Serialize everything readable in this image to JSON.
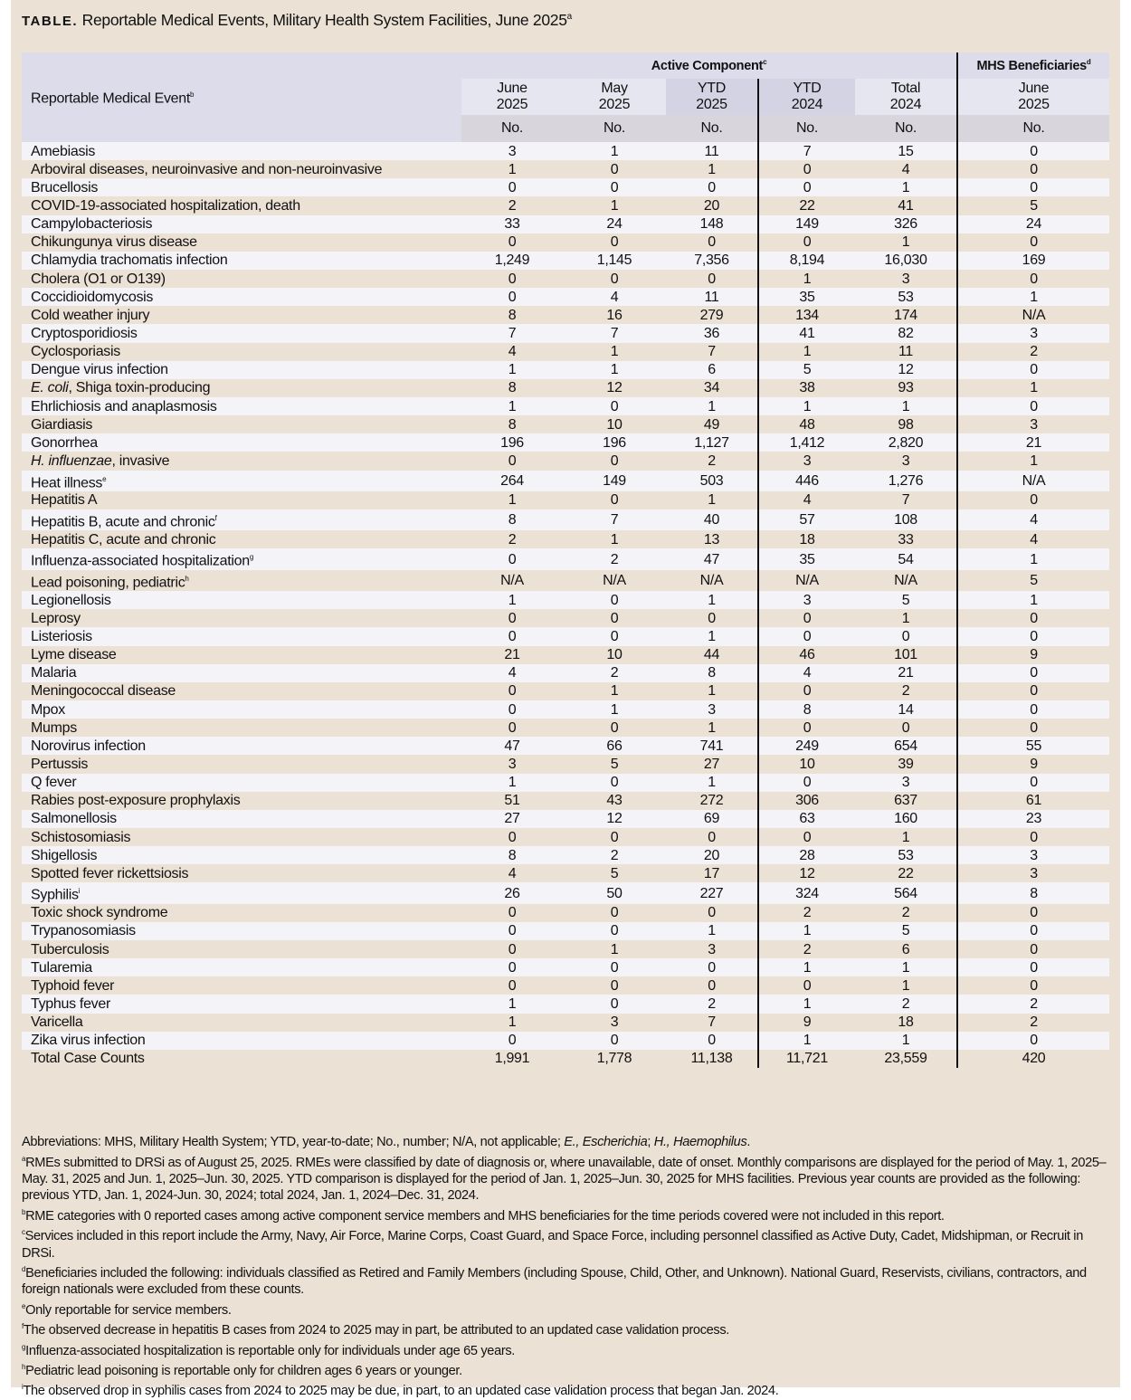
{
  "title": {
    "label": "TABLE.",
    "text": "Reportable Medical Events, Military Health System Facilities, June 2025",
    "sup": "a"
  },
  "header": {
    "row_header": "Reportable Medical Event",
    "row_header_sup": "b",
    "group_active": "Active Component",
    "group_active_sup": "c",
    "group_mhs": "MHS Beneficiaries",
    "group_mhs_sup": "d",
    "columns": [
      {
        "l1": "June",
        "l2": "2025"
      },
      {
        "l1": "May",
        "l2": "2025"
      },
      {
        "l1": "YTD",
        "l2": "2025"
      },
      {
        "l1": "YTD",
        "l2": "2024"
      },
      {
        "l1": "Total",
        "l2": "2024"
      },
      {
        "l1": "June",
        "l2": "2025"
      }
    ],
    "unit": "No."
  },
  "rows": [
    {
      "name": "Amebiasis",
      "v": [
        "3",
        "1",
        "11",
        "7",
        "15",
        "0"
      ]
    },
    {
      "name": "Arboviral diseases, neuroinvasive and non-neuroinvasive",
      "v": [
        "1",
        "0",
        "1",
        "0",
        "4",
        "0"
      ]
    },
    {
      "name": "Brucellosis",
      "v": [
        "0",
        "0",
        "0",
        "0",
        "1",
        "0"
      ]
    },
    {
      "name": "COVID-19-associated hospitalization, death",
      "v": [
        "2",
        "1",
        "20",
        "22",
        "41",
        "5"
      ]
    },
    {
      "name": "Campylobacteriosis",
      "v": [
        "33",
        "24",
        "148",
        "149",
        "326",
        "24"
      ]
    },
    {
      "name": "Chikungunya virus disease",
      "v": [
        "0",
        "0",
        "0",
        "0",
        "1",
        "0"
      ]
    },
    {
      "name": "Chlamydia trachomatis infection",
      "v": [
        "1,249",
        "1,145",
        "7,356",
        "8,194",
        "16,030",
        "169"
      ]
    },
    {
      "name": "Cholera (O1 or O139)",
      "v": [
        "0",
        "0",
        "0",
        "1",
        "3",
        "0"
      ]
    },
    {
      "name": "Coccidioidomycosis",
      "v": [
        "0",
        "4",
        "11",
        "35",
        "53",
        "1"
      ]
    },
    {
      "name": "Cold weather injury",
      "v": [
        "8",
        "16",
        "279",
        "134",
        "174",
        "N/A"
      ]
    },
    {
      "name": "Cryptosporidiosis",
      "v": [
        "7",
        "7",
        "36",
        "41",
        "82",
        "3"
      ]
    },
    {
      "name": "Cyclosporiasis",
      "v": [
        "4",
        "1",
        "7",
        "1",
        "11",
        "2"
      ]
    },
    {
      "name": "Dengue virus infection",
      "v": [
        "1",
        "1",
        "6",
        "5",
        "12",
        "0"
      ]
    },
    {
      "italic": "E. coli",
      "name": ", Shiga toxin-producing",
      "v": [
        "8",
        "12",
        "34",
        "38",
        "93",
        "1"
      ]
    },
    {
      "name": "Ehrlichiosis and anaplasmosis",
      "v": [
        "1",
        "0",
        "1",
        "1",
        "1",
        "0"
      ]
    },
    {
      "name": "Giardiasis",
      "v": [
        "8",
        "10",
        "49",
        "48",
        "98",
        "3"
      ]
    },
    {
      "name": "Gonorrhea",
      "v": [
        "196",
        "196",
        "1,127",
        "1,412",
        "2,820",
        "21"
      ]
    },
    {
      "italic": "H. influenzae",
      "name": ", invasive",
      "v": [
        "0",
        "0",
        "2",
        "3",
        "3",
        "1"
      ]
    },
    {
      "name": "Heat illness",
      "sup": "e",
      "v": [
        "264",
        "149",
        "503",
        "446",
        "1,276",
        "N/A"
      ]
    },
    {
      "name": "Hepatitis A",
      "v": [
        "1",
        "0",
        "1",
        "4",
        "7",
        "0"
      ]
    },
    {
      "name": "Hepatitis B, acute and chronic",
      "sup": "f",
      "v": [
        "8",
        "7",
        "40",
        "57",
        "108",
        "4"
      ]
    },
    {
      "name": "Hepatitis C, acute and chronic",
      "v": [
        "2",
        "1",
        "13",
        "18",
        "33",
        "4"
      ]
    },
    {
      "name": "Influenza-associated hospitalization",
      "sup": "g",
      "v": [
        "0",
        "2",
        "47",
        "35",
        "54",
        "1"
      ]
    },
    {
      "name": "Lead poisoning, pediatric",
      "sup": "h",
      "v": [
        "N/A",
        "N/A",
        "N/A",
        "N/A",
        "N/A",
        "5"
      ]
    },
    {
      "name": "Legionellosis",
      "v": [
        "1",
        "0",
        "1",
        "3",
        "5",
        "1"
      ]
    },
    {
      "name": "Leprosy",
      "v": [
        "0",
        "0",
        "0",
        "0",
        "1",
        "0"
      ]
    },
    {
      "name": "Listeriosis",
      "v": [
        "0",
        "0",
        "1",
        "0",
        "0",
        "0"
      ]
    },
    {
      "name": "Lyme disease",
      "v": [
        "21",
        "10",
        "44",
        "46",
        "101",
        "9"
      ]
    },
    {
      "name": "Malaria",
      "v": [
        "4",
        "2",
        "8",
        "4",
        "21",
        "0"
      ]
    },
    {
      "name": "Meningococcal disease",
      "v": [
        "0",
        "1",
        "1",
        "0",
        "2",
        "0"
      ]
    },
    {
      "name": "Mpox",
      "v": [
        "0",
        "1",
        "3",
        "8",
        "14",
        "0"
      ]
    },
    {
      "name": "Mumps",
      "v": [
        "0",
        "0",
        "1",
        "0",
        "0",
        "0"
      ]
    },
    {
      "name": "Norovirus infection",
      "v": [
        "47",
        "66",
        "741",
        "249",
        "654",
        "55"
      ]
    },
    {
      "name": "Pertussis",
      "v": [
        "3",
        "5",
        "27",
        "10",
        "39",
        "9"
      ]
    },
    {
      "name": "Q fever",
      "v": [
        "1",
        "0",
        "1",
        "0",
        "3",
        "0"
      ]
    },
    {
      "name": "Rabies post-exposure prophylaxis",
      "v": [
        "51",
        "43",
        "272",
        "306",
        "637",
        "61"
      ]
    },
    {
      "name": "Salmonellosis",
      "v": [
        "27",
        "12",
        "69",
        "63",
        "160",
        "23"
      ]
    },
    {
      "name": "Schistosomiasis",
      "v": [
        "0",
        "0",
        "0",
        "0",
        "1",
        "0"
      ]
    },
    {
      "name": "Shigellosis",
      "v": [
        "8",
        "2",
        "20",
        "28",
        "53",
        "3"
      ]
    },
    {
      "name": "Spotted fever rickettsiosis",
      "v": [
        "4",
        "5",
        "17",
        "12",
        "22",
        "3"
      ]
    },
    {
      "name": "Syphilis",
      "sup": "i",
      "v": [
        "26",
        "50",
        "227",
        "324",
        "564",
        "8"
      ]
    },
    {
      "name": "Toxic shock syndrome",
      "v": [
        "0",
        "0",
        "0",
        "2",
        "2",
        "0"
      ]
    },
    {
      "name": "Trypanosomiasis",
      "v": [
        "0",
        "0",
        "1",
        "1",
        "5",
        "0"
      ]
    },
    {
      "name": "Tuberculosis",
      "v": [
        "0",
        "1",
        "3",
        "2",
        "6",
        "0"
      ]
    },
    {
      "name": "Tularemia",
      "v": [
        "0",
        "0",
        "0",
        "1",
        "1",
        "0"
      ]
    },
    {
      "name": "Typhoid fever",
      "v": [
        "0",
        "0",
        "0",
        "0",
        "1",
        "0"
      ]
    },
    {
      "name": "Typhus fever",
      "v": [
        "1",
        "0",
        "2",
        "1",
        "2",
        "2"
      ]
    },
    {
      "name": "Varicella",
      "v": [
        "1",
        "3",
        "7",
        "9",
        "18",
        "2"
      ]
    },
    {
      "name": "Zika virus infection",
      "v": [
        "0",
        "0",
        "0",
        "1",
        "1",
        "0"
      ]
    }
  ],
  "total": {
    "name": "Total Case Counts",
    "v": [
      "1,991",
      "1,778",
      "11,138",
      "11,721",
      "23,559",
      "420"
    ]
  },
  "footnotes": [
    {
      "sup": "",
      "html": "Abbreviations: MHS, Military Health System; YTD, year-to-date; No., number; N/A, not applicable; <i>E., Escherichia</i>; <i>H., Haemophilus</i>."
    },
    {
      "sup": "a",
      "html": "RMEs submitted to DRSi as of August 25, 2025. RMEs were classified by date of diagnosis or, where unavailable, date of onset. Monthly comparisons are displayed for the period of May. 1, 2025–May. 31, 2025 and Jun. 1, 2025–Jun. 30, 2025. YTD comparison is displayed for the period of Jan. 1, 2025–Jun. 30, 2025 for MHS facilities. Previous year counts are provided as the following: previous YTD, Jan. 1, 2024-Jun. 30, 2024; total 2024, Jan. 1, 2024–Dec. 31, 2024."
    },
    {
      "sup": "b",
      "html": "RME categories with 0 reported cases among active component service members and MHS beneficiaries for the time periods covered were not included in this report."
    },
    {
      "sup": "c",
      "html": "Services included in this report include the Army, Navy, Air Force, Marine Corps, Coast Guard, and Space Force, including personnel classified as Active Duty, Cadet, Midshipman, or Recruit in DRSi."
    },
    {
      "sup": "d",
      "html": "Beneficiaries included the following: individuals classified as Retired and Family Members (including Spouse, Child, Other, and Unknown). National Guard, Reservists, civilians, contractors, and foreign nationals were excluded from these counts."
    },
    {
      "sup": "e",
      "html": "Only reportable for service members."
    },
    {
      "sup": "f",
      "html": "The observed decrease in hepatitis B cases from 2024 to 2025 may in part, be attributed to an updated case validation process."
    },
    {
      "sup": "g",
      "html": "Influenza-associated hospitalization is reportable only for individuals under age 65 years."
    },
    {
      "sup": "h",
      "html": "Pediatric lead poisoning is reportable only for children ages 6 years or younger."
    },
    {
      "sup": "i",
      "html": "The observed drop in syphilis cases from 2024 to 2025 may be due, in part, to an updated case validation process that began Jan. 2024."
    }
  ]
}
